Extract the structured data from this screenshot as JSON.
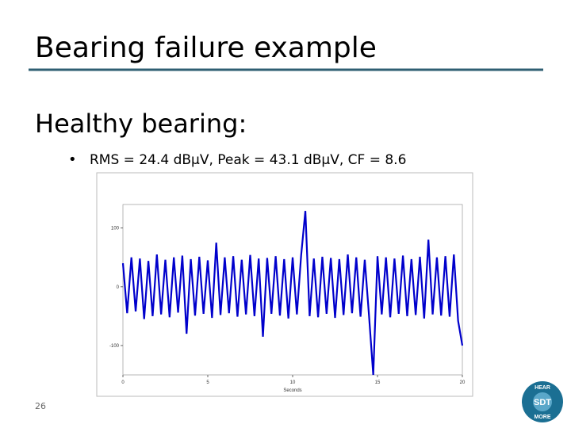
{
  "slide": {
    "title": "Bearing failure example",
    "heading": "Healthy bearing:",
    "bullet": "RMS = 24.4 dBµV, Peak = 43.1 dBµV, CF = 8.6",
    "page_number": "26",
    "logo": {
      "top": "HEAR",
      "center": "SDT",
      "bottom": "MORE"
    }
  },
  "chart_data": {
    "type": "line",
    "x_label": "Seconds",
    "color": "#0000cc",
    "x": [
      0,
      0.25,
      0.5,
      0.75,
      1,
      1.25,
      1.5,
      1.75,
      2,
      2.25,
      2.5,
      2.75,
      3,
      3.25,
      3.5,
      3.75,
      4,
      4.25,
      4.5,
      4.75,
      5,
      5.25,
      5.5,
      5.75,
      6,
      6.25,
      6.5,
      6.75,
      7,
      7.25,
      7.5,
      7.75,
      8,
      8.25,
      8.5,
      8.75,
      9,
      9.25,
      9.5,
      9.75,
      10,
      10.25,
      10.5,
      10.75,
      11,
      11.25,
      11.5,
      11.75,
      12,
      12.25,
      12.5,
      12.75,
      13,
      13.25,
      13.5,
      13.75,
      14,
      14.25,
      14.5,
      14.75,
      15,
      15.25,
      15.5,
      15.75,
      16,
      16.25,
      16.5,
      16.75,
      17,
      17.25,
      17.5,
      17.75,
      18,
      18.25,
      18.5,
      18.75,
      19,
      19.25,
      19.5,
      19.75,
      20
    ],
    "values": [
      40,
      -45,
      50,
      -42,
      48,
      -55,
      44,
      -50,
      55,
      -47,
      46,
      -52,
      50,
      -44,
      53,
      -80,
      47,
      -49,
      51,
      -46,
      45,
      -53,
      75,
      -48,
      50,
      -45,
      52,
      -51,
      46,
      -47,
      54,
      -50,
      48,
      -85,
      49,
      -46,
      52,
      -49,
      47,
      -54,
      50,
      -47,
      53,
      129,
      -50,
      48,
      -52,
      51,
      -46,
      49,
      -53,
      47,
      -48,
      55,
      -45,
      50,
      -51,
      46,
      -49,
      -150,
      52,
      -47,
      50,
      -52,
      48,
      -46,
      53,
      -50,
      47,
      -48,
      51,
      -54,
      80,
      -47,
      50,
      -49,
      52,
      -51,
      55,
      -58,
      -100
    ],
    "xlim": [
      0,
      20
    ],
    "xticks": [
      0,
      5,
      10,
      15,
      20
    ],
    "ylim": [
      -150,
      140
    ],
    "yticks": [
      -100,
      0,
      100
    ]
  }
}
